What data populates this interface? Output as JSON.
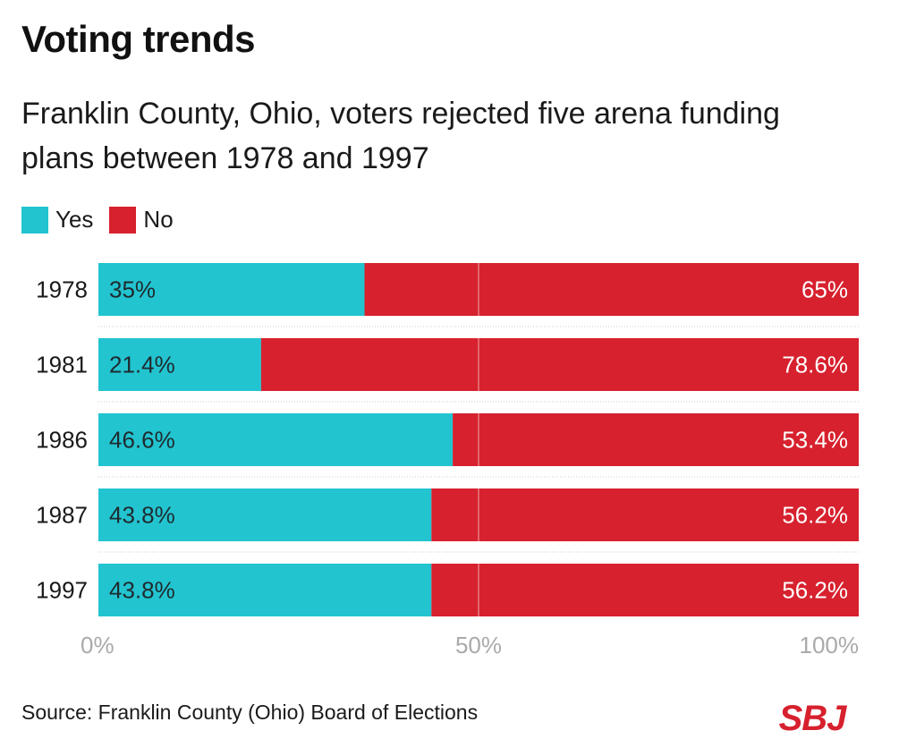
{
  "title": "Voting trends",
  "subtitle": "Franklin County, Ohio, voters rejected five arena funding plans between 1978 and 1997",
  "source": "Source: Franklin County (Ohio) Board of Elections",
  "logo_text": "SBJ",
  "colors": {
    "yes": "#22c4d0",
    "no": "#d7212e",
    "axis_text": "#aaaaaa"
  },
  "chart_data": {
    "type": "bar",
    "orientation": "horizontal",
    "stacked": true,
    "categories": [
      "1978",
      "1981",
      "1986",
      "1987",
      "1997"
    ],
    "series": [
      {
        "name": "Yes",
        "values": [
          35,
          21.4,
          46.6,
          43.8,
          43.8
        ],
        "labels": [
          "35%",
          "21.4%",
          "46.6%",
          "43.8%",
          "43.8%"
        ]
      },
      {
        "name": "No",
        "values": [
          65,
          78.6,
          53.4,
          56.2,
          56.2
        ],
        "labels": [
          "65%",
          "78.6%",
          "53.4%",
          "56.2%",
          "56.2%"
        ]
      }
    ],
    "xlim": [
      0,
      100
    ],
    "xticks": [
      0,
      50,
      100
    ],
    "xtick_labels": [
      "0%",
      "50%",
      "100%"
    ],
    "legend_position": "top-left",
    "gridline_at": 50
  }
}
